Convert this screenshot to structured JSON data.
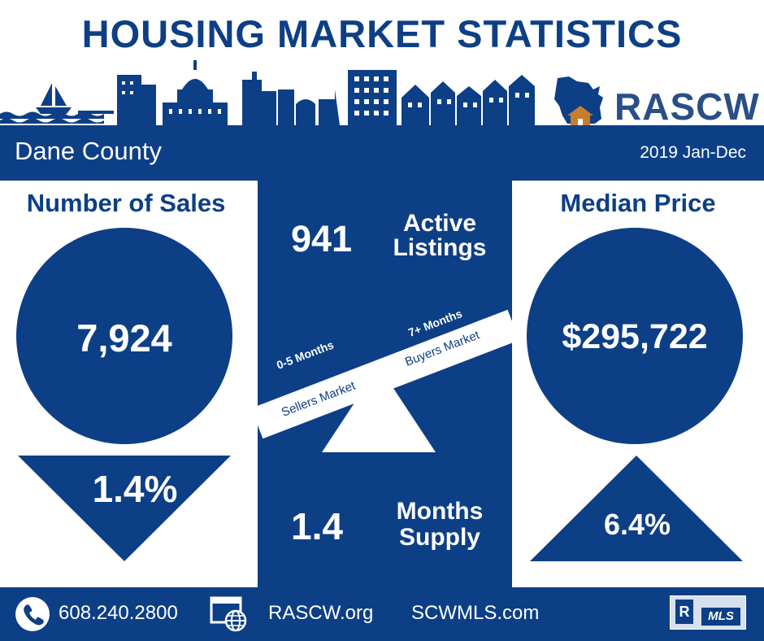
{
  "title": "HOUSING MARKET STATISTICS",
  "logo_text": "RASCW",
  "region": "Dane County",
  "period": "2019 Jan-Dec",
  "sales": {
    "label": "Number of Sales",
    "value": "7,924",
    "change": "1.4%",
    "direction": "down"
  },
  "active": {
    "value": "941",
    "label_line1": "Active",
    "label_line2": "Listings"
  },
  "scale": {
    "left_range": "0-5 Months",
    "left_label": "Sellers Market",
    "right_range": "7+ Months",
    "right_label": "Buyers Market"
  },
  "supply": {
    "value": "1.4",
    "label_line1": "Months",
    "label_line2": "Supply"
  },
  "price": {
    "label": "Median Price",
    "value": "$295,722",
    "change": "6.4%",
    "direction": "up"
  },
  "footer": {
    "phone": "608.240.2800",
    "site1": "RASCW.org",
    "site2": "SCWMLS.com",
    "badge_text": "MLS"
  },
  "colors": {
    "navy": "#0d3f86",
    "white": "#ffffff",
    "house": "#c77d2e"
  }
}
